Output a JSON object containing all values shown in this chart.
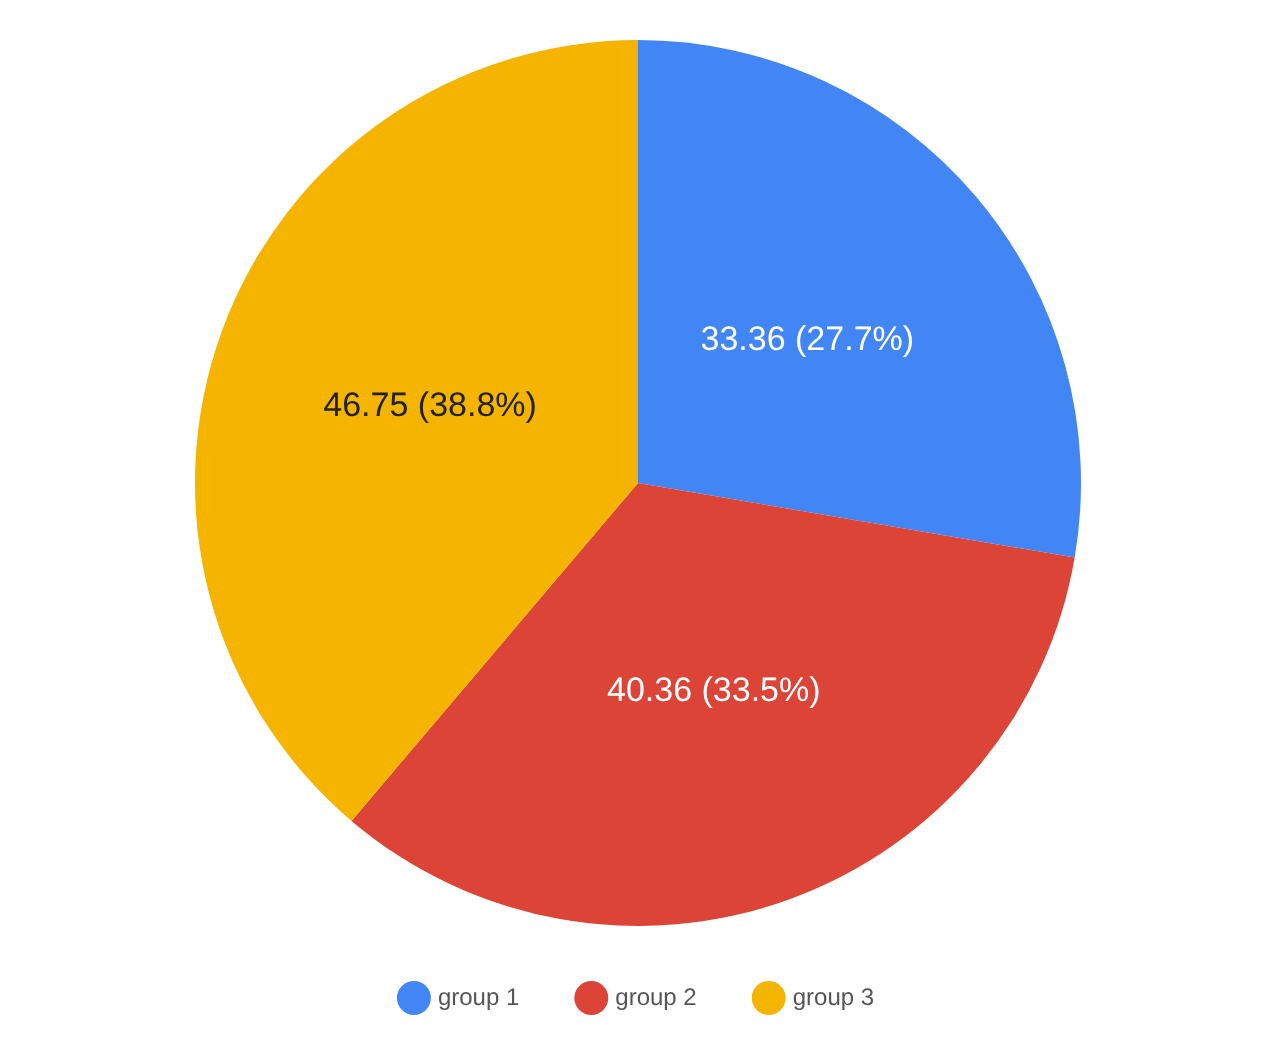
{
  "chart_data": {
    "type": "pie",
    "categories": [
      "group 1",
      "group 2",
      "group 3"
    ],
    "values": [
      33.36,
      40.36,
      46.75
    ],
    "colors": [
      "#4285f4",
      "#db4437",
      "#f4b400"
    ],
    "value_labels": [
      "33.36 (27.7%)",
      "40.36 (33.5%)",
      "46.75 (38.8%)"
    ],
    "legend": "bottom"
  }
}
